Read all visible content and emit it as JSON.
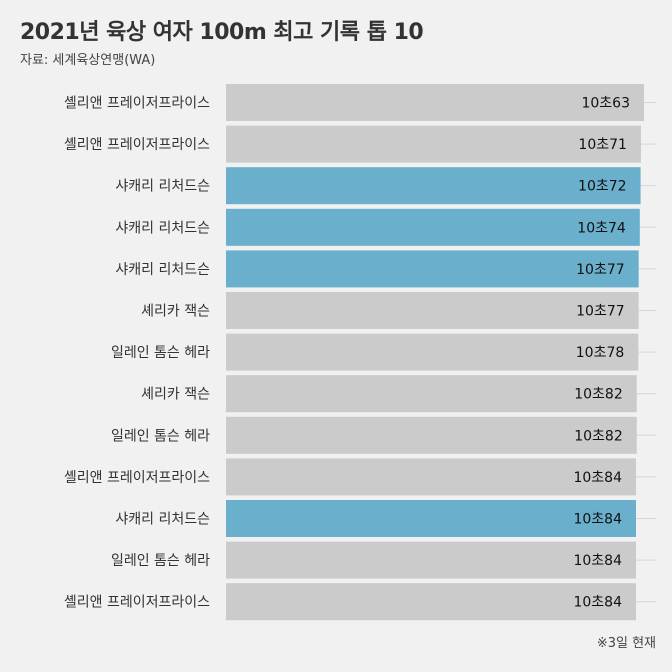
{
  "header": {
    "title": "2021년 육상 여자 100m 최고 기록 톱 10",
    "source": "자료: 세계육상연맹(WA)"
  },
  "footnote": "※3일 현재",
  "colors": {
    "background": "#f1f1f1",
    "bar_default": "#cbcbcb",
    "bar_highlight": "#6aafcb",
    "highlight_athlete": "샤캐리 리처드슨"
  },
  "chart_data": {
    "type": "bar",
    "orientation": "horizontal",
    "categories": [
      "셸리앤 프레이저프라이스",
      "셸리앤 프레이저프라이스",
      "샤캐리 리처드슨",
      "샤캐리 리처드슨",
      "샤캐리 리처드슨",
      "셰리카 잭슨",
      "일레인 톰슨 헤라",
      "셰리카 잭슨",
      "일레인 톰슨 헤라",
      "셸리앤 프레이저프라이스",
      "샤캐리 리처드슨",
      "일레인 톰슨 헤라",
      "셸리앤 프레이저프라이스"
    ],
    "values": [
      10.63,
      10.71,
      10.72,
      10.74,
      10.77,
      10.77,
      10.78,
      10.82,
      10.82,
      10.84,
      10.84,
      10.84,
      10.84
    ],
    "value_labels": [
      "10초63",
      "10초71",
      "10초72",
      "10초74",
      "10초77",
      "10초77",
      "10초78",
      "10초82",
      "10초82",
      "10초84",
      "10초84",
      "10초84",
      "10초84"
    ],
    "highlight": [
      false,
      false,
      true,
      true,
      true,
      false,
      false,
      false,
      false,
      false,
      true,
      false,
      false
    ],
    "title": "2021년 육상 여자 100m 최고 기록 톱 10",
    "xlabel": "",
    "ylabel": "",
    "grid": false,
    "legend": "none"
  }
}
